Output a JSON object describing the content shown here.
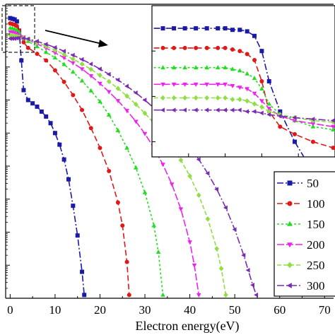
{
  "chart_data": {
    "type": "line",
    "xlabel": "Electron energy(eV)",
    "xlim": [
      -1,
      72
    ],
    "xticks": [
      0,
      10,
      20,
      30,
      40,
      50,
      60,
      70
    ],
    "ylog": true,
    "ylim_log10": [
      -8,
      0.9
    ],
    "grid": false,
    "legend_placement": "bottom-right",
    "series": [
      {
        "name": "50",
        "color": "#1a1aa6",
        "marker": "square",
        "dash": "9,3,2,3",
        "x": [
          0,
          0.5,
          1,
          1.5,
          2,
          2.5,
          3,
          4,
          5,
          6,
          7,
          8,
          9,
          10,
          11,
          12,
          13,
          14,
          15,
          16,
          16.5
        ],
        "logy": [
          0.48,
          0.46,
          0.44,
          0.38,
          0.1,
          -0.8,
          -1.7,
          -2.0,
          -2.1,
          -2.2,
          -2.35,
          -2.5,
          -2.7,
          -3.0,
          -3.35,
          -3.8,
          -4.4,
          -5.2,
          -6.1,
          -7.2,
          -7.9
        ]
      },
      {
        "name": "100",
        "color": "#e01818",
        "marker": "circle",
        "dash": "8,4",
        "x": [
          0,
          0.5,
          1,
          1.5,
          2,
          3,
          4,
          6,
          8,
          10,
          12,
          14,
          16,
          18,
          20,
          22,
          24,
          25,
          26,
          26.5
        ],
        "logy": [
          0.32,
          0.3,
          0.28,
          0.24,
          0.1,
          -0.25,
          -0.42,
          -0.6,
          -0.8,
          -1.1,
          -1.45,
          -1.85,
          -2.3,
          -2.85,
          -3.45,
          -4.15,
          -5.1,
          -5.8,
          -6.9,
          -7.9
        ]
      },
      {
        "name": "150",
        "color": "#22dd22",
        "marker": "triangle-up",
        "dash": "3,3",
        "x": [
          0,
          0.5,
          1,
          1.5,
          2,
          3,
          4,
          6,
          8,
          10,
          12,
          14,
          16,
          18,
          20,
          22,
          24,
          26,
          28,
          30,
          32,
          33,
          34
        ],
        "logy": [
          0.18,
          0.17,
          0.15,
          0.12,
          0.06,
          -0.12,
          -0.22,
          -0.38,
          -0.55,
          -0.72,
          -0.92,
          -1.15,
          -1.42,
          -1.72,
          -2.05,
          -2.45,
          -2.92,
          -3.45,
          -4.05,
          -4.8,
          -5.8,
          -6.6,
          -7.9
        ]
      },
      {
        "name": "200",
        "color": "#ee22ee",
        "marker": "triangle-down",
        "dash": "10,3",
        "x": [
          0,
          0.5,
          1,
          1.5,
          2,
          3,
          4,
          6,
          8,
          10,
          12,
          14,
          16,
          18,
          20,
          22,
          24,
          26,
          28,
          30,
          32,
          34,
          36,
          38,
          40,
          41,
          42
        ],
        "logy": [
          0.06,
          0.05,
          0.03,
          0.0,
          -0.04,
          -0.1,
          -0.17,
          -0.3,
          -0.43,
          -0.57,
          -0.72,
          -0.88,
          -1.06,
          -1.27,
          -1.5,
          -1.75,
          -2.02,
          -2.32,
          -2.65,
          -3.02,
          -3.45,
          -3.95,
          -4.55,
          -5.3,
          -6.3,
          -7.0,
          -7.9
        ]
      },
      {
        "name": "250",
        "color": "#90dd44",
        "marker": "diamond",
        "dash": "6,3",
        "x": [
          0,
          0.5,
          1,
          1.5,
          2,
          3,
          4,
          6,
          8,
          10,
          12,
          14,
          16,
          18,
          20,
          22,
          24,
          26,
          28,
          30,
          32,
          34,
          36,
          38,
          40,
          42,
          44,
          46,
          47,
          48
        ],
        "logy": [
          -0.04,
          -0.05,
          -0.06,
          -0.07,
          -0.09,
          -0.12,
          -0.16,
          -0.26,
          -0.37,
          -0.49,
          -0.62,
          -0.76,
          -0.91,
          -1.07,
          -1.25,
          -1.44,
          -1.65,
          -1.88,
          -2.13,
          -2.4,
          -2.7,
          -3.03,
          -3.4,
          -3.82,
          -4.3,
          -4.88,
          -5.6,
          -6.5,
          -7.1,
          -7.9
        ]
      },
      {
        "name": "300",
        "color": "#7a2cb4",
        "marker": "triangle-left",
        "dash": "10,3,2,3",
        "x": [
          0,
          0.5,
          1,
          1.5,
          2,
          3,
          4,
          6,
          8,
          10,
          12,
          14,
          16,
          18,
          20,
          22,
          24,
          26,
          28,
          30,
          32,
          34,
          36,
          38,
          40,
          42,
          44,
          46,
          48,
          50,
          52,
          53,
          54,
          54.8
        ],
        "logy": [
          -0.14,
          -0.14,
          -0.14,
          -0.13,
          -0.12,
          -0.13,
          -0.15,
          -0.22,
          -0.31,
          -0.41,
          -0.52,
          -0.64,
          -0.77,
          -0.91,
          -1.06,
          -1.22,
          -1.39,
          -1.58,
          -1.78,
          -2.0,
          -2.24,
          -2.5,
          -2.78,
          -3.08,
          -3.42,
          -3.8,
          -4.22,
          -4.7,
          -5.26,
          -5.92,
          -6.7,
          -7.15,
          -7.6,
          -7.9
        ]
      }
    ],
    "inset": {
      "xlim": [
        0,
        5
      ],
      "ylim_log10": [
        -0.4,
        0.6
      ],
      "series_logy": [
        [
          0.45,
          0.45,
          0.45,
          0.45,
          0.45,
          0.45,
          0.45,
          0.45,
          0.44,
          0.44,
          0.43,
          0.4,
          0.3,
          0.1,
          -0.1,
          -0.3,
          -0.5,
          -0.8
        ],
        [
          0.32,
          0.32,
          0.32,
          0.32,
          0.32,
          0.32,
          0.32,
          0.32,
          0.31,
          0.3,
          0.28,
          0.24,
          0.1,
          -0.1,
          -0.2,
          -0.25,
          -0.3,
          -0.34
        ],
        [
          0.19,
          0.19,
          0.19,
          0.19,
          0.19,
          0.19,
          0.19,
          0.19,
          0.18,
          0.17,
          0.15,
          0.12,
          0.05,
          -0.05,
          -0.12,
          -0.16,
          -0.2,
          -0.22
        ],
        [
          0.08,
          0.08,
          0.08,
          0.08,
          0.08,
          0.08,
          0.08,
          0.08,
          0.07,
          0.06,
          0.05,
          0.02,
          -0.03,
          -0.08,
          -0.13,
          -0.16,
          -0.18,
          -0.2
        ],
        [
          -0.01,
          -0.01,
          -0.01,
          -0.01,
          -0.01,
          -0.01,
          -0.01,
          -0.01,
          -0.02,
          -0.02,
          -0.03,
          -0.05,
          -0.07,
          -0.1,
          -0.12,
          -0.14,
          -0.16,
          -0.17
        ],
        [
          -0.09,
          -0.09,
          -0.09,
          -0.09,
          -0.09,
          -0.09,
          -0.09,
          -0.09,
          -0.09,
          -0.09,
          -0.1,
          -0.1,
          -0.11,
          -0.12,
          -0.13,
          -0.14,
          -0.15,
          -0.16
        ]
      ],
      "x": [
        0.05,
        0.3,
        0.6,
        0.9,
        1.2,
        1.5,
        1.8,
        2.0,
        2.2,
        2.4,
        2.6,
        2.8,
        3.0,
        3.2,
        3.5,
        3.9,
        4.4,
        4.95
      ]
    }
  }
}
